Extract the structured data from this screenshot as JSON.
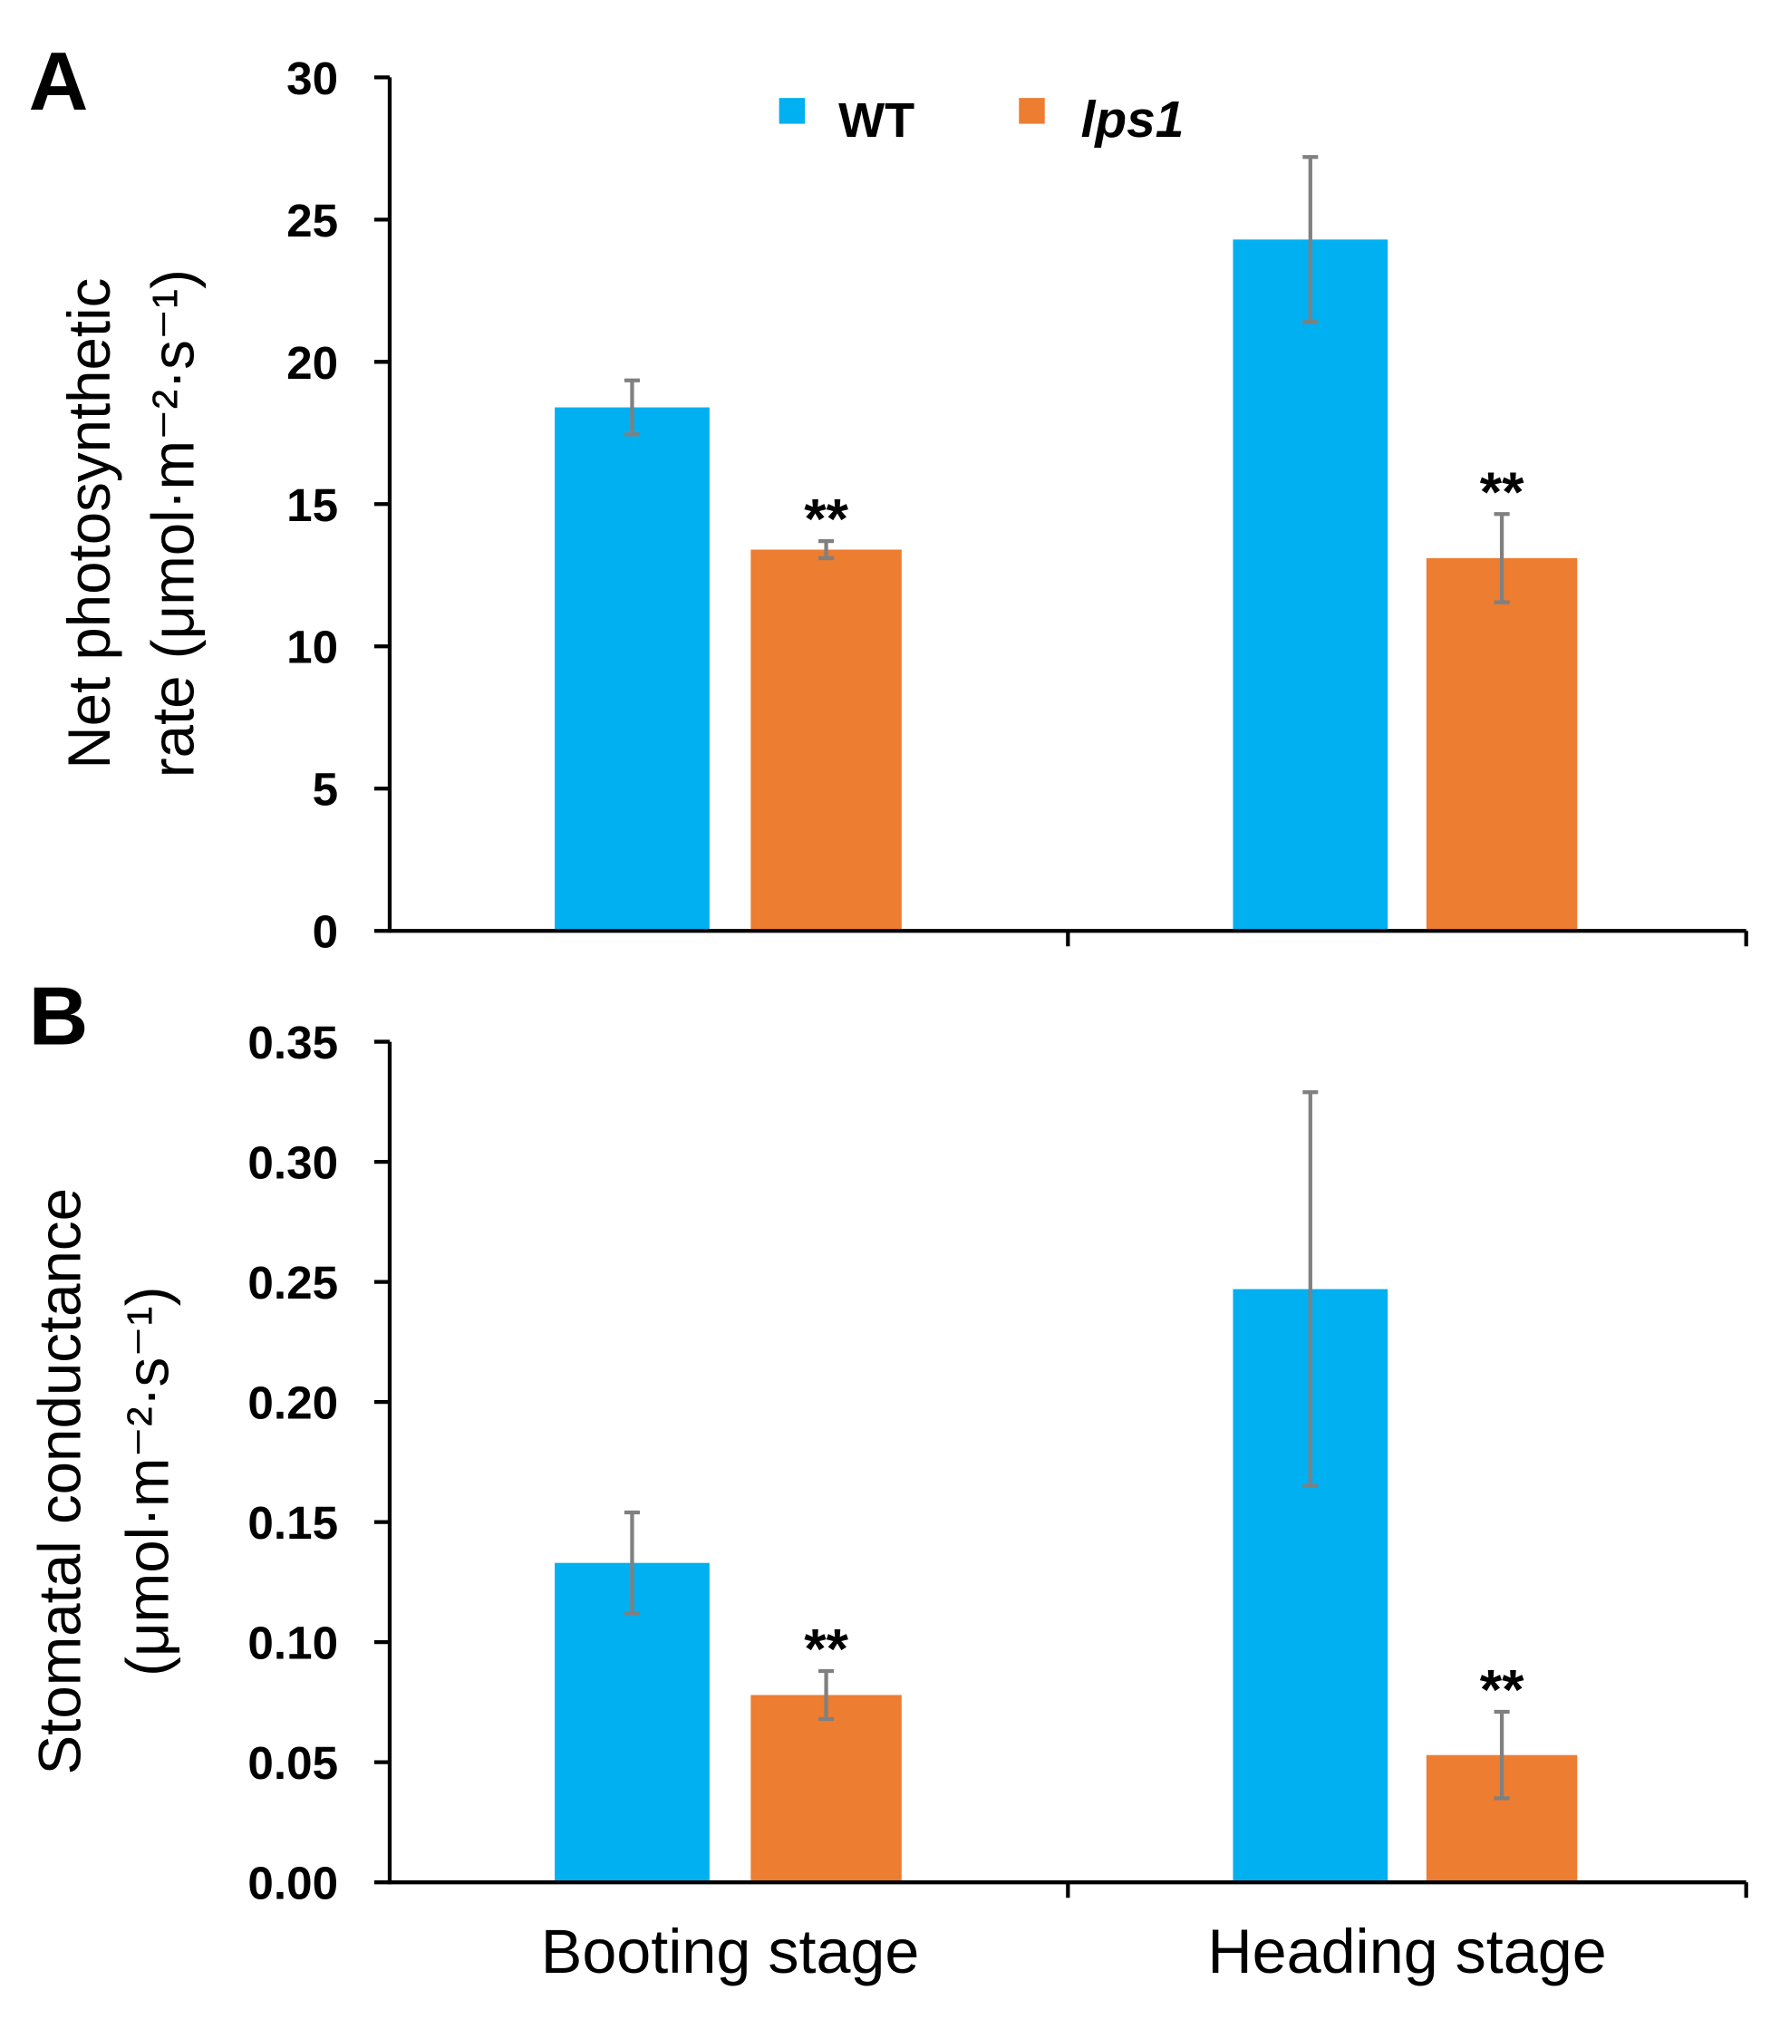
{
  "colors": {
    "WT": "#00B0F0",
    "lps1": "#ED7D31",
    "error": "#808080",
    "axis": "#000000"
  },
  "legend": {
    "items": [
      "WT",
      "lps1"
    ],
    "placement": "top-center"
  },
  "chart_data": [
    {
      "type": "bar",
      "panel_label": "A",
      "categories": [
        "Booting stage",
        "Heading stage"
      ],
      "ylabel_line1": "Net photosynthetic",
      "ylabel_line2": "rate (μmol·m⁻²·s⁻¹)",
      "ylim": [
        0,
        30
      ],
      "yticks": [
        0,
        5,
        10,
        15,
        20,
        25,
        30
      ],
      "ytick_labels": [
        "0",
        "5",
        "10",
        "15",
        "20",
        "25",
        "30"
      ],
      "series": [
        {
          "name": "WT",
          "values": [
            18.4,
            24.3
          ],
          "errors": [
            0.95,
            2.9
          ],
          "annotations": [
            "",
            ""
          ]
        },
        {
          "name": "lps1",
          "values": [
            13.4,
            13.1
          ],
          "errors": [
            0.3,
            1.55
          ],
          "annotations": [
            "**",
            "**"
          ]
        }
      ]
    },
    {
      "type": "bar",
      "panel_label": "B",
      "categories": [
        "Booting stage",
        "Heading stage"
      ],
      "ylabel_line1": "Stomatal conductance",
      "ylabel_line2": "(μmol·m⁻²·s⁻¹)",
      "ylim": [
        0,
        0.35
      ],
      "yticks": [
        0,
        0.05,
        0.1,
        0.15,
        0.2,
        0.25,
        0.3,
        0.35
      ],
      "ytick_labels": [
        "0.00",
        "0.05",
        "0.10",
        "0.15",
        "0.20",
        "0.25",
        "0.30",
        "0.35"
      ],
      "series": [
        {
          "name": "WT",
          "values": [
            0.133,
            0.247
          ],
          "errors": [
            0.021,
            0.082
          ],
          "annotations": [
            "",
            ""
          ]
        },
        {
          "name": "lps1",
          "values": [
            0.078,
            0.053
          ],
          "errors": [
            0.01,
            0.018
          ],
          "annotations": [
            "**",
            "**"
          ]
        }
      ]
    }
  ]
}
